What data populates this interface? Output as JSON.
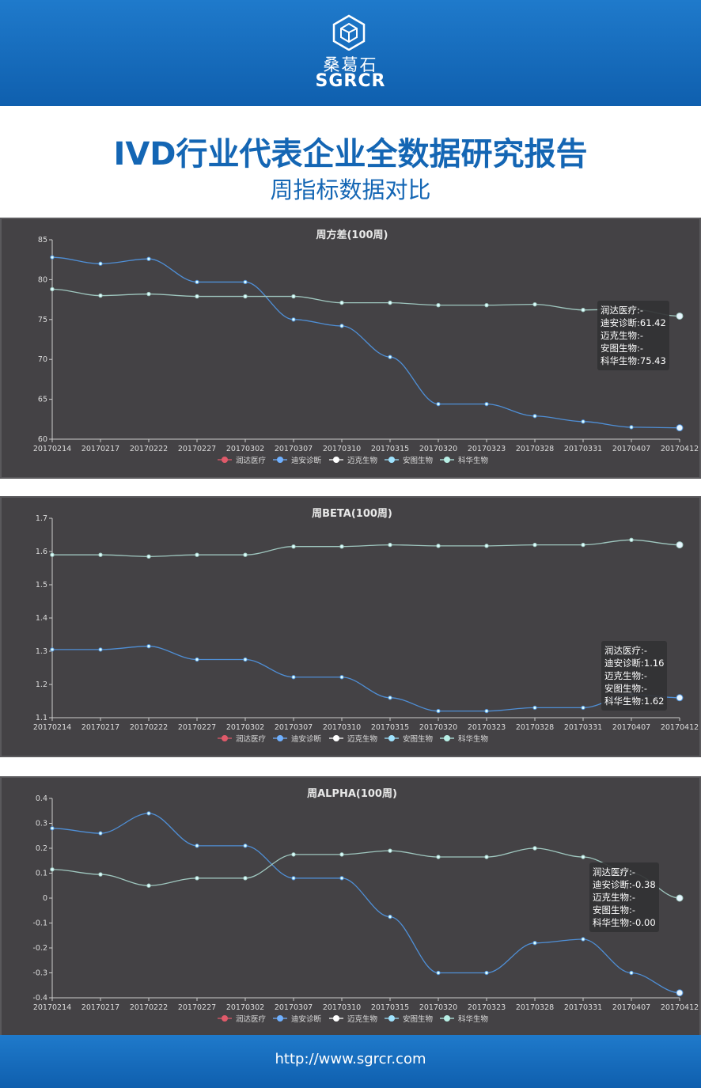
{
  "header": {
    "brand_cn": "桑葛石",
    "brand_en": "SGRCR",
    "title": "IVD行业代表企业全数据研究报告",
    "subtitle": "周指标数据对比"
  },
  "footer": {
    "url": "http://www.sgrcr.com"
  },
  "colors": {
    "brand_blue": "#1466b4",
    "panel_bg": "#444245",
    "series_diaan": "#4f8fd6",
    "series_kehua": "#9fc7bf"
  },
  "legend": [
    {
      "label": "润达医疗",
      "color": "#e05a6a"
    },
    {
      "label": "迪安诊断",
      "color": "#6fb0ff"
    },
    {
      "label": "迈克生物",
      "color": "#ffffff"
    },
    {
      "label": "安图生物",
      "color": "#9fe3ff"
    },
    {
      "label": "科华生物",
      "color": "#b8f0e6"
    }
  ],
  "chart_data": [
    {
      "type": "line",
      "title": "周方差(100周)",
      "x": [
        "20170214",
        "20170217",
        "20170222",
        "20170227",
        "20170302",
        "20170307",
        "20170310",
        "20170315",
        "20170320",
        "20170323",
        "20170328",
        "20170331",
        "20170407",
        "20170412"
      ],
      "ylim": [
        60,
        85
      ],
      "yticks": [
        60,
        65,
        70,
        75,
        80,
        85
      ],
      "series": [
        {
          "name": "迪安诊断",
          "values": [
            82.8,
            82.0,
            82.6,
            79.7,
            79.7,
            75.0,
            74.2,
            70.3,
            64.4,
            64.4,
            62.9,
            62.2,
            61.5,
            61.42
          ]
        },
        {
          "name": "科华生物",
          "values": [
            78.8,
            78.0,
            78.2,
            77.9,
            77.9,
            77.9,
            77.1,
            77.1,
            76.8,
            76.8,
            76.9,
            76.2,
            76.3,
            75.43
          ]
        }
      ],
      "tooltip": [
        "润达医疗:-",
        "迪安诊断:61.42",
        "迈克生物:-",
        "安图生物:-",
        "科华生物:75.43"
      ]
    },
    {
      "type": "line",
      "title": "周BETA(100周)",
      "x": [
        "20170214",
        "20170217",
        "20170222",
        "20170227",
        "20170302",
        "20170307",
        "20170310",
        "20170315",
        "20170320",
        "20170323",
        "20170328",
        "20170331",
        "20170407",
        "20170412"
      ],
      "ylim": [
        1.1,
        1.7
      ],
      "yticks": [
        1.1,
        1.2,
        1.3,
        1.4,
        1.5,
        1.6,
        1.7
      ],
      "series": [
        {
          "name": "迪安诊断",
          "values": [
            1.305,
            1.305,
            1.315,
            1.275,
            1.275,
            1.222,
            1.222,
            1.16,
            1.12,
            1.12,
            1.13,
            1.13,
            1.17,
            1.16
          ]
        },
        {
          "name": "科华生物",
          "values": [
            1.59,
            1.59,
            1.585,
            1.59,
            1.59,
            1.615,
            1.615,
            1.62,
            1.617,
            1.617,
            1.62,
            1.62,
            1.635,
            1.62
          ]
        }
      ],
      "tooltip": [
        "润达医疗:-",
        "迪安诊断:1.16",
        "迈克生物:-",
        "安图生物:-",
        "科华生物:1.62"
      ]
    },
    {
      "type": "line",
      "title": "周ALPHA(100周)",
      "x": [
        "20170214",
        "20170217",
        "20170222",
        "20170227",
        "20170302",
        "20170307",
        "20170310",
        "20170315",
        "20170320",
        "20170323",
        "20170328",
        "20170331",
        "20170407",
        "20170412"
      ],
      "ylim": [
        -0.4,
        0.4
      ],
      "yticks": [
        -0.4,
        -0.3,
        -0.2,
        -0.1,
        0,
        0.1,
        0.2,
        0.3,
        0.4
      ],
      "series": [
        {
          "name": "迪安诊断",
          "values": [
            0.28,
            0.26,
            0.34,
            0.21,
            0.21,
            0.08,
            0.08,
            -0.075,
            -0.3,
            -0.3,
            -0.18,
            -0.165,
            -0.3,
            -0.38
          ]
        },
        {
          "name": "科华生物",
          "values": [
            0.115,
            0.095,
            0.05,
            0.08,
            0.08,
            0.175,
            0.175,
            0.19,
            0.165,
            0.165,
            0.2,
            0.165,
            0.1,
            0.0
          ]
        }
      ],
      "tooltip": [
        "润达医疗:-",
        "迪安诊断:-0.38",
        "迈克生物:-",
        "安图生物:-",
        "科华生物:-0.00"
      ]
    }
  ]
}
